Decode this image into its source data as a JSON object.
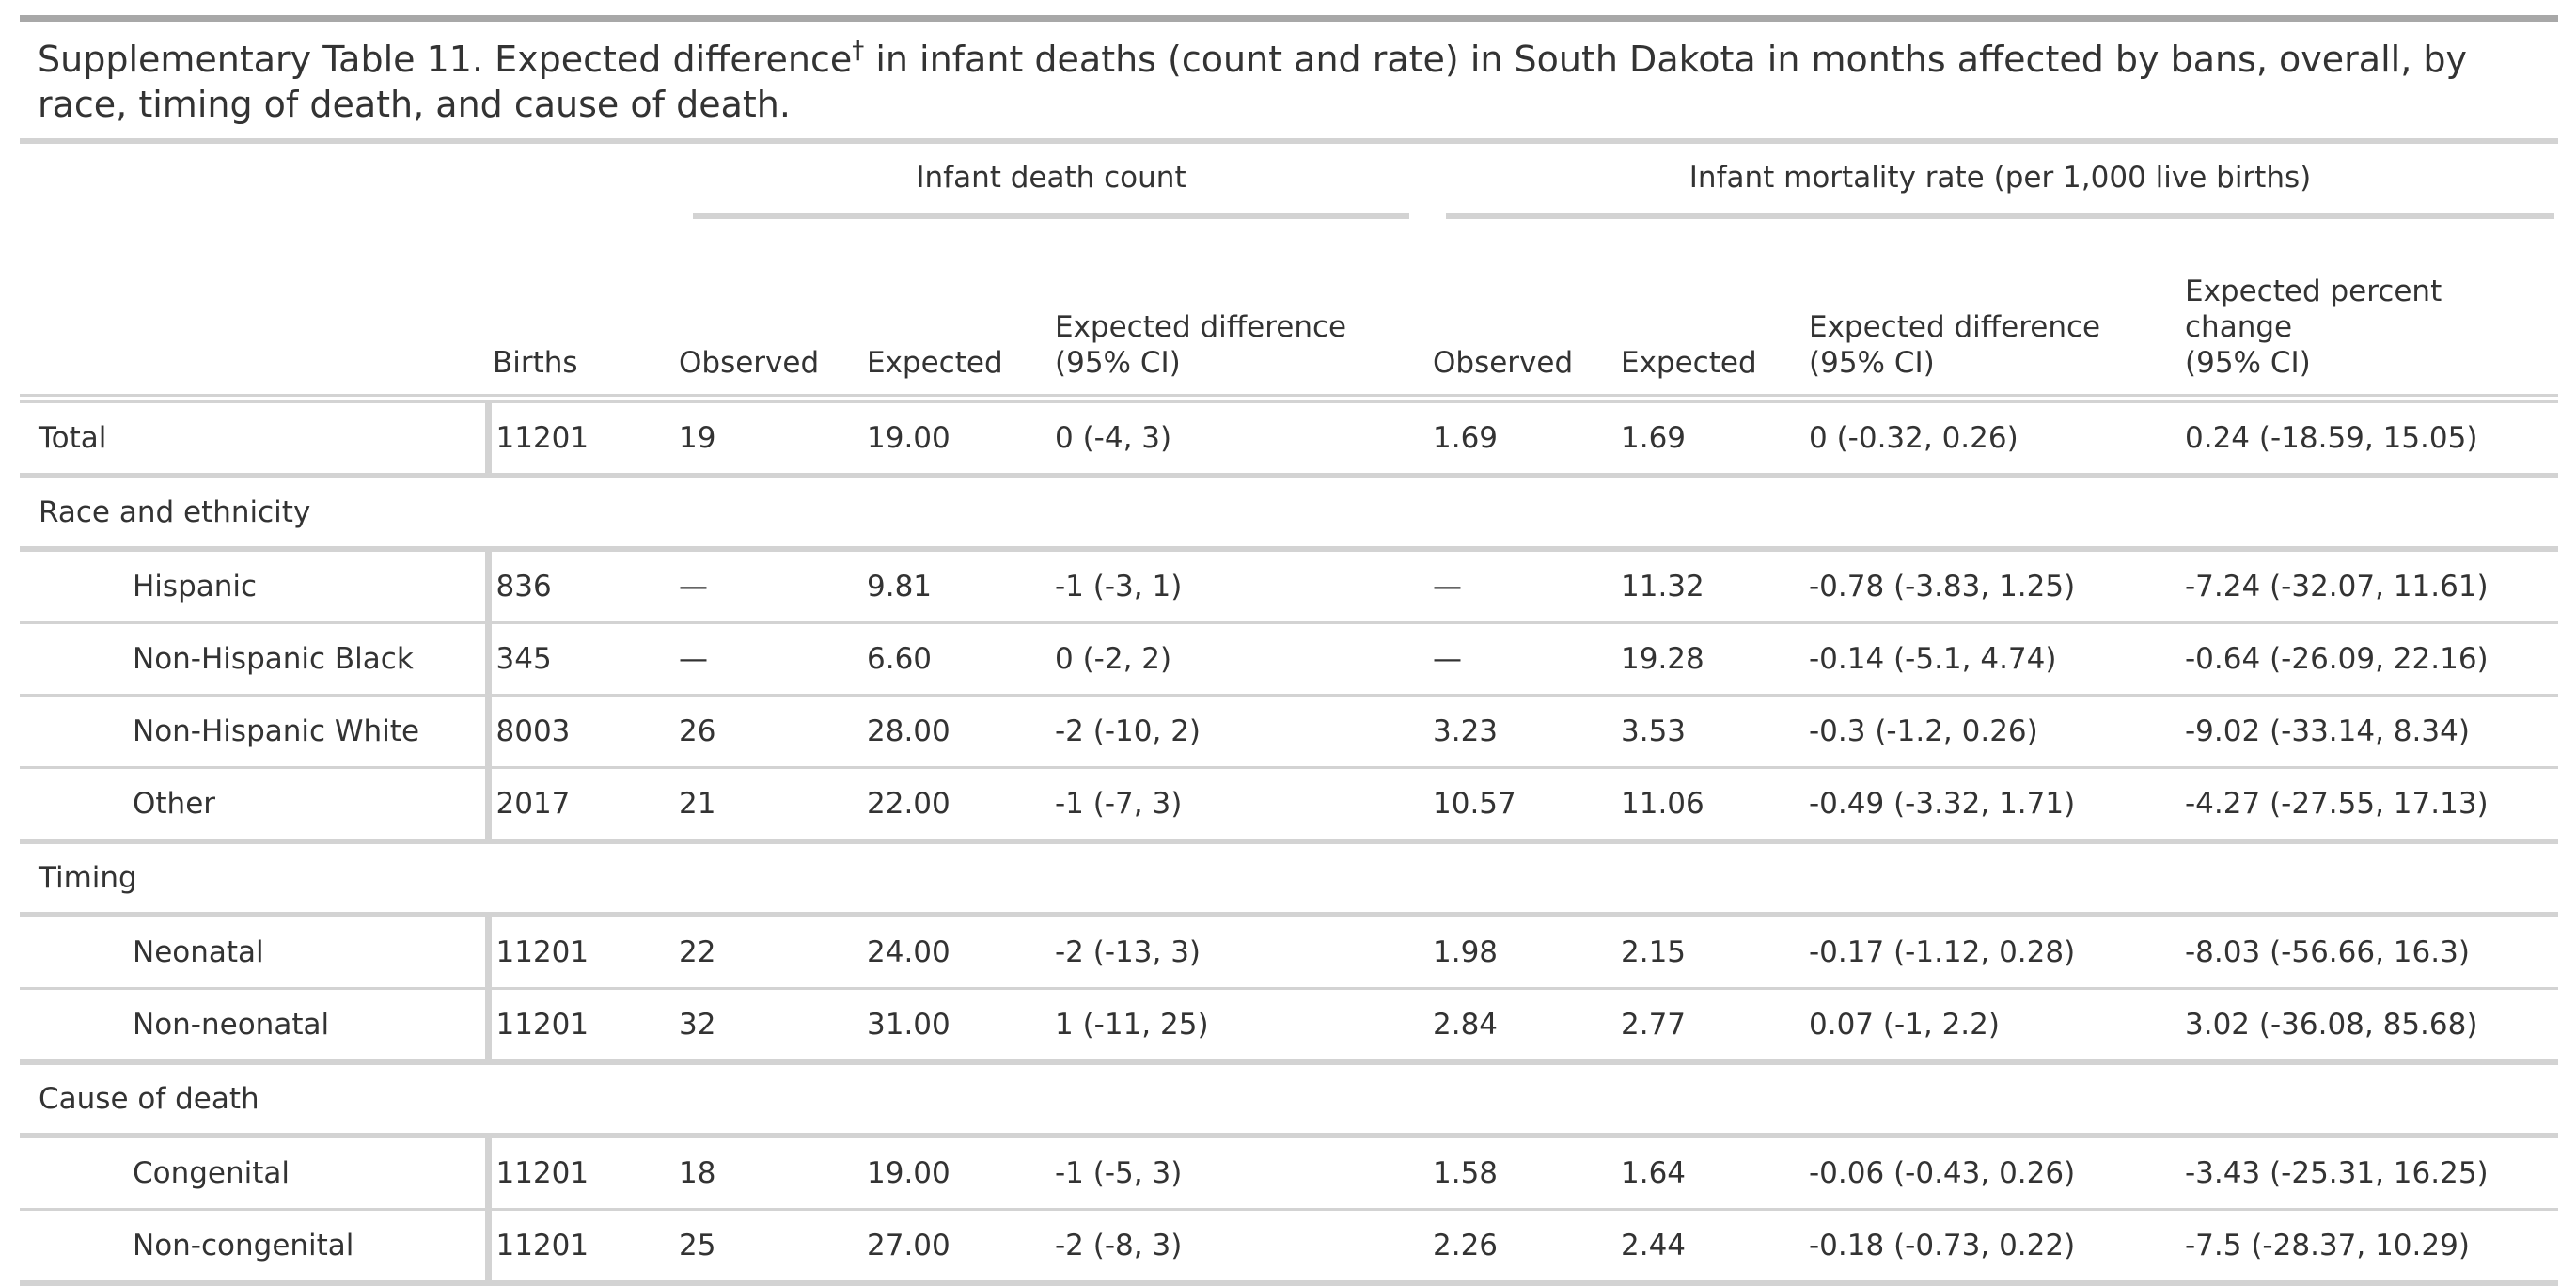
{
  "caption": {
    "prefix": "Supplementary Table 11. Expected difference",
    "dagger": "†",
    "suffix": " in infant deaths (count and rate) in South Dakota in months affected by bans, overall, by race, timing of death, and cause of death."
  },
  "spanners": {
    "count": "Infant death count",
    "rate": "Infant mortality rate (per 1,000 live births)"
  },
  "columns": {
    "births": "Births",
    "observed1": "Observed",
    "expected1": "Expected",
    "diff1_line1": "Expected difference",
    "diff1_line2": "(95% CI)",
    "observed2": "Observed",
    "expected2": "Expected",
    "diff2_line1": "Expected difference",
    "diff2_line2": "(95% CI)",
    "pct_line1": "Expected percent",
    "pct_line2": "change",
    "pct_line3": "(95% CI)"
  },
  "total": {
    "label": "Total",
    "births": "11201",
    "observed1": "19",
    "expected1": "19.00",
    "diff1": "0 (-4, 3)",
    "observed2": "1.69",
    "expected2": "1.69",
    "diff2": "0 (-0.32, 0.26)",
    "pct": "0.24 (-18.59, 15.05)"
  },
  "groups": [
    {
      "label": "Race and ethnicity",
      "rows": [
        {
          "label": "Hispanic",
          "births": "836",
          "observed1": "—",
          "expected1": "9.81",
          "diff1": "-1 (-3, 1)",
          "observed2": "—",
          "expected2": "11.32",
          "diff2": "-0.78 (-3.83, 1.25)",
          "pct": "-7.24 (-32.07, 11.61)"
        },
        {
          "label": "Non-Hispanic Black",
          "births": "345",
          "observed1": "—",
          "expected1": "6.60",
          "diff1": "0 (-2, 2)",
          "observed2": "—",
          "expected2": "19.28",
          "diff2": "-0.14 (-5.1, 4.74)",
          "pct": "-0.64 (-26.09, 22.16)"
        },
        {
          "label": "Non-Hispanic White",
          "births": "8003",
          "observed1": "26",
          "expected1": "28.00",
          "diff1": "-2 (-10, 2)",
          "observed2": "3.23",
          "expected2": "3.53",
          "diff2": "-0.3 (-1.2, 0.26)",
          "pct": "-9.02 (-33.14, 8.34)"
        },
        {
          "label": "Other",
          "births": "2017",
          "observed1": "21",
          "expected1": "22.00",
          "diff1": "-1 (-7, 3)",
          "observed2": "10.57",
          "expected2": "11.06",
          "diff2": "-0.49 (-3.32, 1.71)",
          "pct": "-4.27 (-27.55, 17.13)"
        }
      ]
    },
    {
      "label": "Timing",
      "rows": [
        {
          "label": "Neonatal",
          "births": "11201",
          "observed1": "22",
          "expected1": "24.00",
          "diff1": "-2 (-13, 3)",
          "observed2": "1.98",
          "expected2": "2.15",
          "diff2": "-0.17 (-1.12, 0.28)",
          "pct": "-8.03 (-56.66, 16.3)"
        },
        {
          "label": "Non-neonatal",
          "births": "11201",
          "observed1": "32",
          "expected1": "31.00",
          "diff1": "1 (-11, 25)",
          "observed2": "2.84",
          "expected2": "2.77",
          "diff2": "0.07 (-1, 2.2)",
          "pct": "3.02 (-36.08, 85.68)"
        }
      ]
    },
    {
      "label": "Cause of death",
      "rows": [
        {
          "label": "Congenital",
          "births": "11201",
          "observed1": "18",
          "expected1": "19.00",
          "diff1": "-1 (-5, 3)",
          "observed2": "1.58",
          "expected2": "1.64",
          "diff2": "-0.06 (-0.43, 0.26)",
          "pct": "-3.43 (-25.31, 16.25)"
        },
        {
          "label": "Non-congenital",
          "births": "11201",
          "observed1": "25",
          "expected1": "27.00",
          "diff1": "-2 (-8, 3)",
          "observed2": "2.26",
          "expected2": "2.44",
          "diff2": "-0.18 (-0.73, 0.22)",
          "pct": "-7.5 (-28.37, 10.29)"
        }
      ]
    }
  ]
}
